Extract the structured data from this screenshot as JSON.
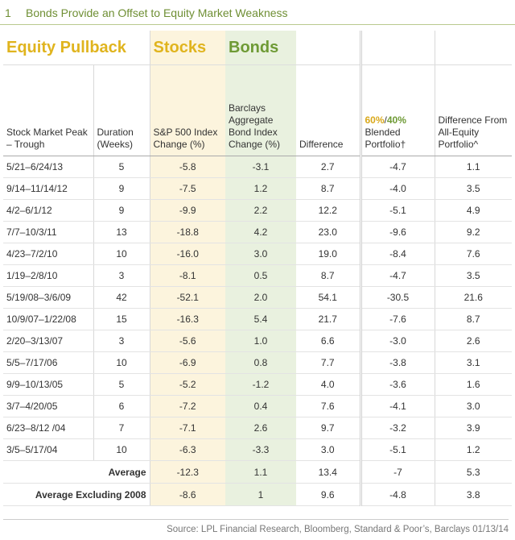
{
  "header": {
    "figure_number": "1",
    "title": "Bonds Provide an Offset to Equity Market Weakness"
  },
  "table": {
    "groups": [
      "Equity Pullback",
      "Stocks",
      "Bonds"
    ],
    "columns": [
      "Stock Market Peak – Trough",
      "Duration (Weeks)",
      "S&P 500 Index Change (%)",
      "Barclays Aggregate Bond Index Change (%)",
      "Difference",
      {
        "prefix": [
          "60%",
          "/",
          "40%"
        ],
        "text": "Blended Portfolio†"
      },
      "Difference From All-Equity Portfolio^"
    ],
    "rows": [
      [
        "5/21–6/24/13",
        "5",
        "-5.8",
        "-3.1",
        "2.7",
        "-4.7",
        "1.1"
      ],
      [
        "9/14–11/14/12",
        "9",
        "-7.5",
        "1.2",
        "8.7",
        "-4.0",
        "3.5"
      ],
      [
        "4/2–6/1/12",
        "9",
        "-9.9",
        "2.2",
        "12.2",
        "-5.1",
        "4.9"
      ],
      [
        "7/7–10/3/11",
        "13",
        "-18.8",
        "4.2",
        "23.0",
        "-9.6",
        "9.2"
      ],
      [
        "4/23–7/2/10",
        "10",
        "-16.0",
        "3.0",
        "19.0",
        "-8.4",
        "7.6"
      ],
      [
        "1/19–2/8/10",
        "3",
        "-8.1",
        "0.5",
        "8.7",
        "-4.7",
        "3.5"
      ],
      [
        "5/19/08–3/6/09",
        "42",
        "-52.1",
        "2.0",
        "54.1",
        "-30.5",
        "21.6"
      ],
      [
        "10/9/07–1/22/08",
        "15",
        "-16.3",
        "5.4",
        "21.7",
        "-7.6",
        "8.7"
      ],
      [
        "2/20–3/13/07",
        "3",
        "-5.6",
        "1.0",
        "6.6",
        "-3.0",
        "2.6"
      ],
      [
        "5/5–7/17/06",
        "10",
        "-6.9",
        "0.8",
        "7.7",
        "-3.8",
        "3.1"
      ],
      [
        "9/9–10/13/05",
        "5",
        "-5.2",
        "-1.2",
        "4.0",
        "-3.6",
        "1.6"
      ],
      [
        "3/7–4/20/05",
        "6",
        "-7.2",
        "0.4",
        "7.6",
        "-4.1",
        "3.0"
      ],
      [
        "6/23–8/12 /04",
        "7",
        "-7.1",
        "2.6",
        "9.7",
        "-3.2",
        "3.9"
      ],
      [
        "3/5–5/17/04",
        "10",
        "-6.3",
        "-3.3",
        "3.0",
        "-5.1",
        "1.2"
      ]
    ],
    "averages": [
      {
        "label": "Average",
        "values": [
          "-12.3",
          "1.1",
          "13.4",
          "-7",
          "5.3"
        ]
      },
      {
        "label": "Average Excluding 2008",
        "values": [
          "-8.6",
          "1",
          "9.6",
          "-4.8",
          "3.8"
        ]
      }
    ]
  },
  "footer": {
    "source": "Source: LPL Financial Research, Bloomberg, Standard & Poor’s, Barclays   01/13/14"
  }
}
